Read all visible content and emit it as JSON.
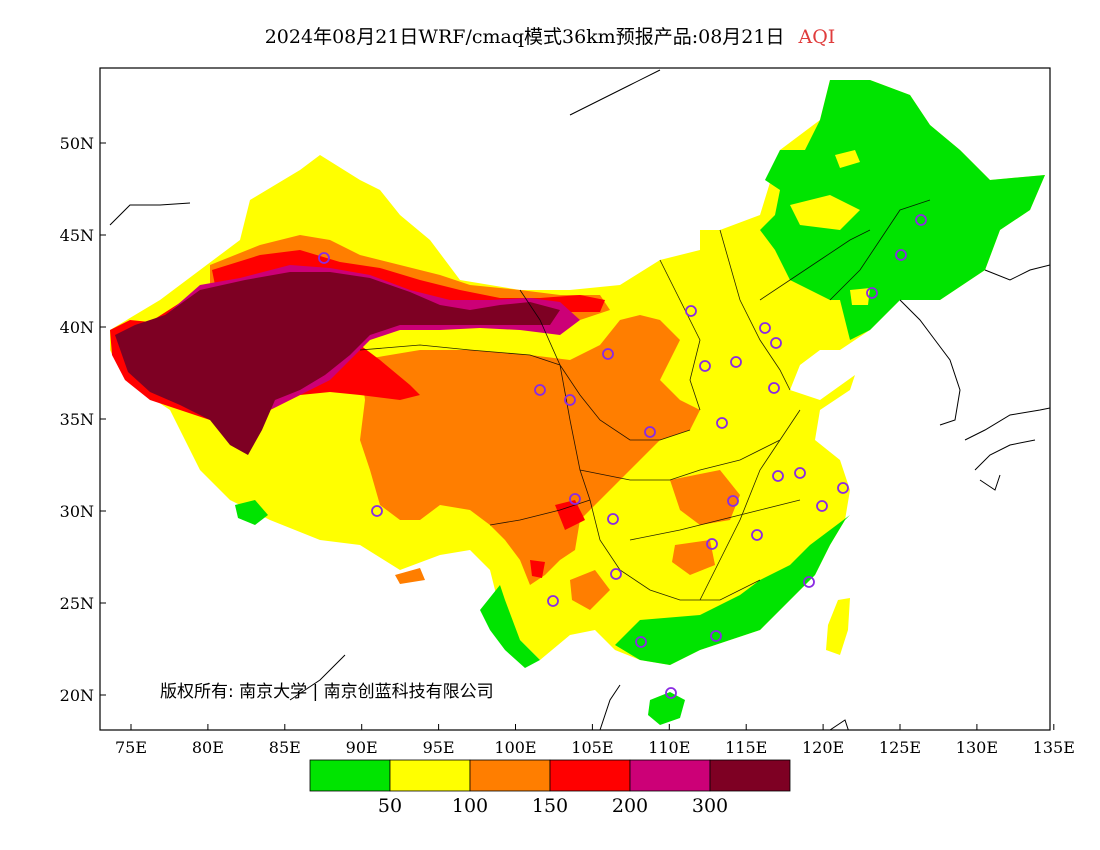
{
  "title": {
    "main": "2024年08月21日WRF/cmaq模式36km预报产品:08月21日",
    "variable": "AQI",
    "variable_color": "#e03c3c"
  },
  "axes": {
    "lat_labels": [
      "20N",
      "25N",
      "30N",
      "35N",
      "40N",
      "45N",
      "50N"
    ],
    "lon_labels": [
      "75E",
      "80E",
      "85E",
      "90E",
      "95E",
      "100E",
      "105E",
      "110E",
      "115E",
      "120E",
      "125E",
      "130E",
      "135E"
    ]
  },
  "copyright": "版权所有: 南京大学 | 南京创蓝科技有限公司",
  "legend": {
    "colors": [
      "#00e400",
      "#ffff00",
      "#ff7e00",
      "#ff0000",
      "#cc0077",
      "#7e0023"
    ],
    "thresholds": [
      "50",
      "100",
      "150",
      "200",
      "300"
    ]
  },
  "map_colors": {
    "ocean": "#ffffff",
    "good": "#00e400",
    "moderate": "#ffff00",
    "usg": "#ff7e00",
    "unhealthy": "#ff0000",
    "very_unhealthy": "#cc0077",
    "hazardous": "#7e0023",
    "station_marker": "#8a2be2"
  }
}
